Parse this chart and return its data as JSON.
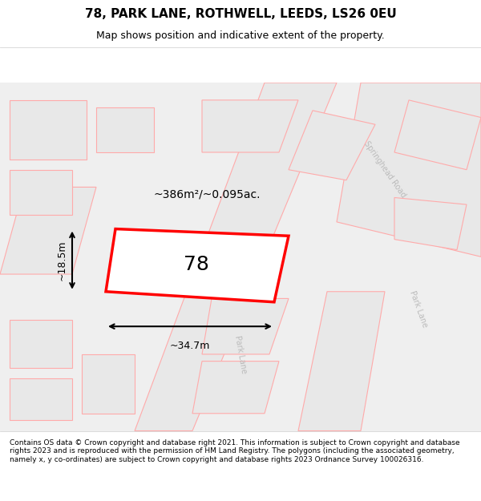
{
  "title": "78, PARK LANE, ROTHWELL, LEEDS, LS26 0EU",
  "subtitle": "Map shows position and indicative extent of the property.",
  "footer": "Contains OS data © Crown copyright and database right 2021. This information is subject to Crown copyright and database rights 2023 and is reproduced with the permission of HM Land Registry. The polygons (including the associated geometry, namely x, y co-ordinates) are subject to Crown copyright and database rights 2023 Ordnance Survey 100026316.",
  "area_label": "~386m²/~0.095ac.",
  "width_label": "~34.7m",
  "height_label": "~18.5m",
  "property_number": "78",
  "background_color": "#f5f5f5",
  "map_bg": "#f0f0f0",
  "title_color": "#000000",
  "footer_color": "#000000",
  "property_outline_color": "#ff0000",
  "road_outline_color": "#ffaaaa",
  "building_fill": "#e8e8e8",
  "road_label_color": "#aaaaaa",
  "title_fontsize": 11,
  "subtitle_fontsize": 9,
  "footer_fontsize": 6.5
}
